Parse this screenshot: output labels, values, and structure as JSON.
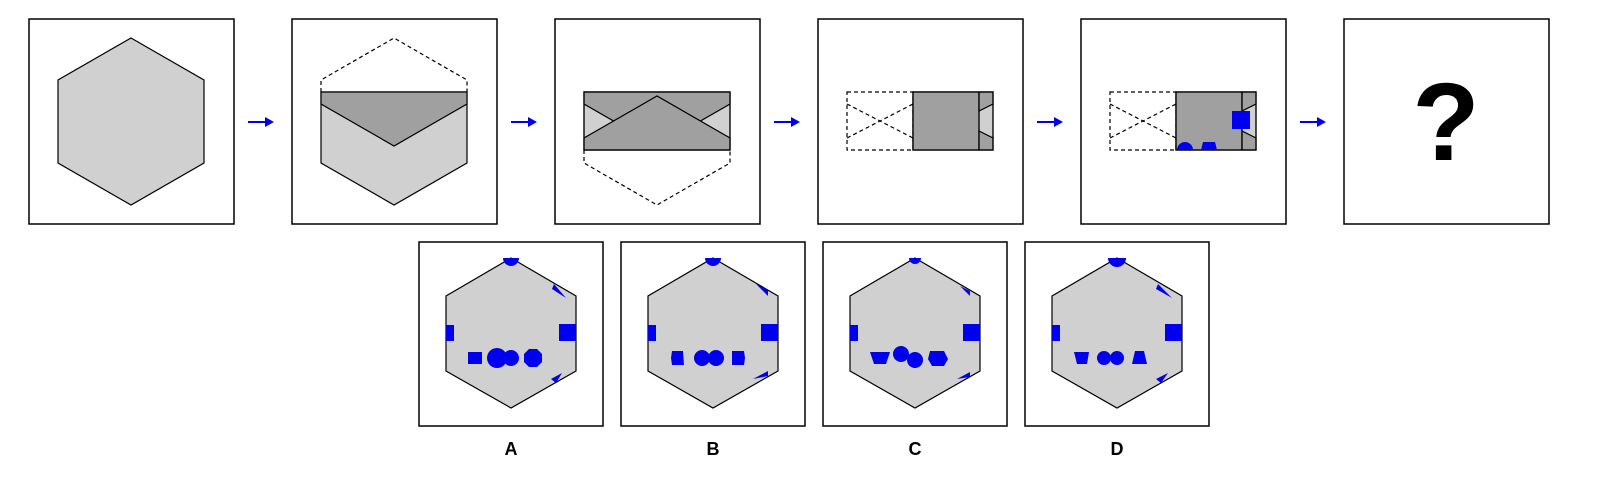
{
  "question_mark": "?",
  "options": [
    {
      "label": "A"
    },
    {
      "label": "B"
    },
    {
      "label": "C"
    },
    {
      "label": "D"
    }
  ],
  "colors": {
    "accent": "#0000ee",
    "light_paper": "#d0d0d0",
    "dark_paper": "#a0a0a0",
    "outline": "#000000"
  }
}
